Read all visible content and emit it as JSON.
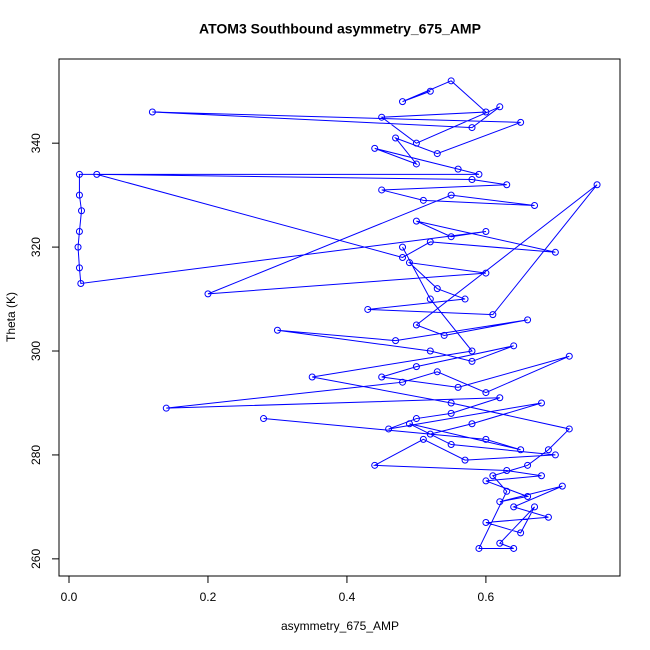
{
  "chart_data": {
    "type": "line",
    "title": "ATOM3 Southbound asymmetry_675_AMP",
    "xlabel": "asymmetry_675_AMP",
    "ylabel": "Theta (K)",
    "color": "#0000ff",
    "marker": "open-circle",
    "x": [
      0.52,
      0.48,
      0.55,
      0.6,
      0.45,
      0.5,
      0.62,
      0.58,
      0.12,
      0.65,
      0.53,
      0.47,
      0.5,
      0.44,
      0.56,
      0.59,
      0.015,
      0.015,
      0.018,
      0.015,
      0.013,
      0.015,
      0.017,
      0.6,
      0.55,
      0.5,
      0.7,
      0.52,
      0.48,
      0.04,
      0.58,
      0.63,
      0.45,
      0.51,
      0.67,
      0.55,
      0.2,
      0.6,
      0.49,
      0.53,
      0.57,
      0.43,
      0.61,
      0.76,
      0.5,
      0.54,
      0.66,
      0.47,
      0.3,
      0.52,
      0.58,
      0.64,
      0.5,
      0.45,
      0.56,
      0.72,
      0.6,
      0.53,
      0.48,
      0.14,
      0.62,
      0.55,
      0.5,
      0.46,
      0.68,
      0.58,
      0.52,
      0.28,
      0.6,
      0.65,
      0.49,
      0.55,
      0.7,
      0.57,
      0.51,
      0.44,
      0.63,
      0.68,
      0.6,
      0.66,
      0.62,
      0.71,
      0.64,
      0.69,
      0.6,
      0.65,
      0.67,
      0.62,
      0.64,
      0.59,
      0.63,
      0.61,
      0.66,
      0.69,
      0.72,
      0.55,
      0.35,
      0.58,
      0.52,
      0.48
    ],
    "y": [
      350,
      348,
      352,
      346,
      345,
      340,
      347,
      343,
      346,
      344,
      338,
      341,
      336,
      339,
      335,
      334,
      334,
      330,
      327,
      323,
      320,
      316,
      313,
      323,
      322,
      325,
      319,
      321,
      318,
      334,
      333,
      332,
      331,
      329,
      328,
      330,
      311,
      315,
      317,
      312,
      310,
      308,
      307,
      332,
      305,
      303,
      306,
      302,
      304,
      300,
      298,
      301,
      297,
      295,
      293,
      299,
      292,
      296,
      294,
      289,
      291,
      288,
      287,
      285,
      290,
      286,
      284,
      287,
      283,
      281,
      286,
      282,
      280,
      279,
      283,
      278,
      277,
      276,
      275,
      272,
      271,
      274,
      270,
      268,
      267,
      265,
      270,
      263,
      262,
      262,
      273,
      276,
      278,
      281,
      285,
      290,
      295,
      300,
      310,
      320
    ],
    "xlim": [
      -0.0144,
      0.793
    ],
    "ylim": [
      256.7,
      356.2
    ],
    "xticks": [
      {
        "value": 0,
        "label": "0.0"
      },
      0.2,
      0.4,
      0.6
    ],
    "yticks": [
      260,
      280,
      300,
      320,
      340
    ]
  }
}
